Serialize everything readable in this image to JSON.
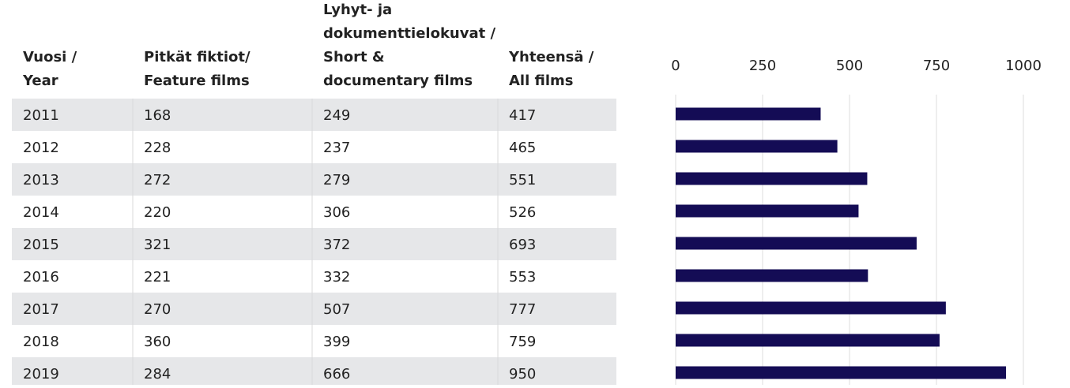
{
  "table": {
    "headers": [
      [
        "Vuosi /",
        "Year"
      ],
      [
        "Pitkät fiktiot/",
        "Feature films"
      ],
      [
        "Lyhyt- ja",
        "dokumenttielokuvat /",
        "Short &",
        "documentary films"
      ],
      [
        "Yhteensä /",
        "All films"
      ]
    ],
    "rows": [
      [
        168,
        249
      ],
      [
        228,
        237
      ],
      [
        272,
        279
      ],
      [
        220,
        306
      ],
      [
        321,
        372
      ],
      [
        221,
        332
      ],
      [
        270,
        507
      ],
      [
        360,
        399
      ],
      [
        284,
        666
      ]
    ]
  },
  "chart_data": {
    "type": "bar",
    "orientation": "horizontal",
    "categories": [
      "2011",
      "2012",
      "2013",
      "2014",
      "2015",
      "2016",
      "2017",
      "2018",
      "2019"
    ],
    "values": [
      417,
      465,
      551,
      526,
      693,
      553,
      777,
      759,
      950
    ],
    "color": "#140c55",
    "xlim": [
      0,
      1000
    ],
    "xticks": [
      0,
      250,
      500,
      750,
      1000
    ],
    "grid": true
  }
}
